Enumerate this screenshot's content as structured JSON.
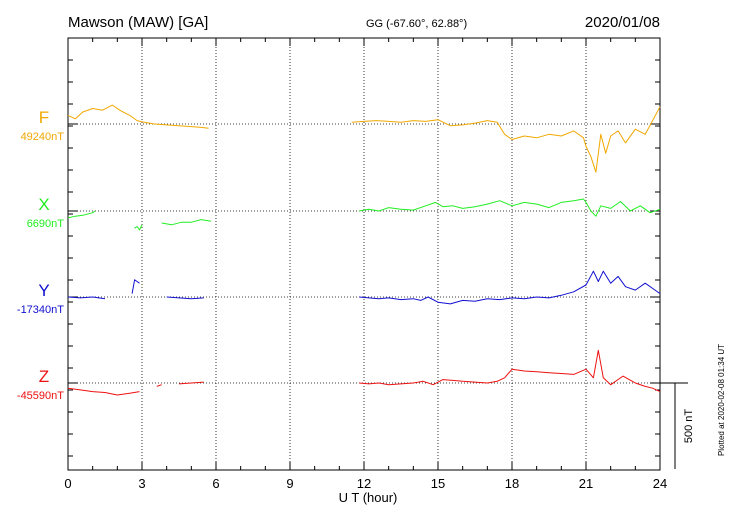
{
  "header": {
    "station": "Mawson (MAW)  [GA]",
    "coords": "GG (-67.60°,  62.88°)",
    "date": "2020/01/08"
  },
  "footer": {
    "plotted": "Plotted at 2020-02-08 01:34 UT"
  },
  "chart_data": {
    "type": "line",
    "xlabel": "U T (hour)",
    "xlim": [
      0,
      24
    ],
    "xticks": [
      "0",
      "3",
      "6",
      "9",
      "12",
      "15",
      "18",
      "21",
      "24"
    ],
    "scale_bar": {
      "label": "500 nT",
      "value_nT": 500
    },
    "series": [
      {
        "name": "F",
        "baseline_label": "49240nT",
        "baseline": 49240,
        "color": "#f0a800",
        "segments": [
          [
            [
              0.0,
              49290
            ],
            [
              0.3,
              49270
            ],
            [
              0.6,
              49310
            ],
            [
              1.0,
              49330
            ],
            [
              1.4,
              49320
            ],
            [
              1.8,
              49350
            ],
            [
              2.1,
              49320
            ],
            [
              2.5,
              49290
            ],
            [
              2.8,
              49260
            ],
            [
              3.1,
              49250
            ],
            [
              3.5,
              49240
            ],
            [
              4.0,
              49235
            ],
            [
              4.5,
              49230
            ],
            [
              5.0,
              49225
            ],
            [
              5.4,
              49220
            ],
            [
              5.7,
              49215
            ]
          ],
          [
            [
              11.5,
              49250
            ],
            [
              12.0,
              49255
            ],
            [
              12.5,
              49260
            ],
            [
              13.0,
              49255
            ],
            [
              13.5,
              49250
            ],
            [
              14.0,
              49260
            ],
            [
              14.5,
              49255
            ],
            [
              15.0,
              49265
            ],
            [
              15.5,
              49230
            ],
            [
              16.0,
              49235
            ],
            [
              16.5,
              49245
            ],
            [
              17.0,
              49260
            ],
            [
              17.4,
              49250
            ],
            [
              17.7,
              49180
            ],
            [
              18.0,
              49150
            ],
            [
              18.5,
              49170
            ],
            [
              19.0,
              49160
            ],
            [
              19.5,
              49180
            ],
            [
              20.0,
              49170
            ],
            [
              20.5,
              49200
            ],
            [
              20.9,
              49160
            ],
            [
              21.0,
              49110
            ],
            [
              21.2,
              49050
            ],
            [
              21.4,
              48960
            ],
            [
              21.6,
              49180
            ],
            [
              21.8,
              49070
            ],
            [
              22.0,
              49170
            ],
            [
              22.3,
              49200
            ],
            [
              22.6,
              49130
            ],
            [
              23.0,
              49210
            ],
            [
              23.4,
              49180
            ],
            [
              23.7,
              49260
            ],
            [
              24.0,
              49340
            ]
          ]
        ]
      },
      {
        "name": "X",
        "baseline_label": "6690nT",
        "baseline": 6690,
        "color": "#22ee22",
        "segments": [
          [
            [
              0.0,
              6650
            ],
            [
              0.3,
              6660
            ],
            [
              0.6,
              6665
            ],
            [
              1.0,
              6680
            ],
            [
              1.1,
              6690
            ]
          ],
          [
            [
              2.7,
              6590
            ],
            [
              2.8,
              6600
            ],
            [
              2.9,
              6580
            ],
            [
              3.0,
              6610
            ]
          ],
          [
            [
              3.8,
              6620
            ],
            [
              4.2,
              6610
            ],
            [
              4.6,
              6625
            ],
            [
              5.0,
              6625
            ],
            [
              5.4,
              6640
            ],
            [
              5.8,
              6630
            ]
          ],
          [
            [
              11.8,
              6690
            ],
            [
              12.2,
              6700
            ],
            [
              12.6,
              6690
            ],
            [
              13.0,
              6710
            ],
            [
              13.5,
              6700
            ],
            [
              14.0,
              6695
            ],
            [
              14.5,
              6720
            ],
            [
              14.9,
              6740
            ],
            [
              15.2,
              6715
            ],
            [
              15.6,
              6720
            ],
            [
              16.0,
              6705
            ],
            [
              16.5,
              6715
            ],
            [
              17.0,
              6730
            ],
            [
              17.5,
              6750
            ],
            [
              18.0,
              6720
            ],
            [
              18.5,
              6740
            ],
            [
              19.0,
              6730
            ],
            [
              19.5,
              6710
            ],
            [
              20.0,
              6740
            ],
            [
              20.5,
              6750
            ],
            [
              20.9,
              6760
            ],
            [
              21.0,
              6740
            ],
            [
              21.2,
              6690
            ],
            [
              21.4,
              6660
            ],
            [
              21.6,
              6720
            ],
            [
              22.0,
              6705
            ],
            [
              22.4,
              6745
            ],
            [
              22.8,
              6690
            ],
            [
              23.2,
              6720
            ],
            [
              23.6,
              6680
            ],
            [
              24.0,
              6700
            ]
          ]
        ]
      },
      {
        "name": "Y",
        "baseline_label": "-17340nT",
        "baseline": -17340,
        "color": "#1010d0",
        "segments": [
          [
            [
              0.0,
              -17340
            ],
            [
              0.5,
              -17345
            ],
            [
              1.0,
              -17340
            ],
            [
              1.5,
              -17350
            ]
          ],
          [
            [
              2.6,
              -17320
            ],
            [
              2.7,
              -17240
            ],
            [
              2.8,
              -17250
            ],
            [
              2.9,
              -17260
            ]
          ],
          [
            [
              4.0,
              -17340
            ],
            [
              4.5,
              -17345
            ],
            [
              5.0,
              -17350
            ],
            [
              5.5,
              -17345
            ]
          ],
          [
            [
              11.8,
              -17340
            ],
            [
              12.2,
              -17345
            ],
            [
              12.6,
              -17350
            ],
            [
              13.0,
              -17345
            ],
            [
              13.5,
              -17355
            ],
            [
              14.0,
              -17350
            ],
            [
              14.3,
              -17360
            ],
            [
              14.6,
              -17340
            ],
            [
              15.0,
              -17370
            ],
            [
              15.5,
              -17380
            ],
            [
              16.0,
              -17360
            ],
            [
              16.5,
              -17365
            ],
            [
              17.0,
              -17350
            ],
            [
              17.5,
              -17355
            ],
            [
              18.0,
              -17345
            ],
            [
              18.5,
              -17350
            ],
            [
              19.0,
              -17340
            ],
            [
              19.5,
              -17345
            ],
            [
              20.0,
              -17330
            ],
            [
              20.5,
              -17310
            ],
            [
              21.0,
              -17270
            ],
            [
              21.3,
              -17190
            ],
            [
              21.5,
              -17250
            ],
            [
              21.7,
              -17190
            ],
            [
              22.0,
              -17260
            ],
            [
              22.3,
              -17220
            ],
            [
              22.6,
              -17280
            ],
            [
              23.0,
              -17300
            ],
            [
              23.4,
              -17260
            ],
            [
              23.8,
              -17300
            ],
            [
              24.0,
              -17320
            ]
          ]
        ]
      },
      {
        "name": "Z",
        "baseline_label": "-45590nT",
        "baseline": -45590,
        "color": "#ee1010",
        "segments": [
          [
            [
              0.0,
              -45620
            ],
            [
              0.5,
              -45630
            ],
            [
              1.0,
              -45640
            ],
            [
              1.5,
              -45645
            ],
            [
              2.0,
              -45660
            ],
            [
              2.5,
              -45650
            ],
            [
              2.9,
              -45640
            ]
          ],
          [
            [
              3.6,
              -45610
            ],
            [
              3.8,
              -45600
            ]
          ],
          [
            [
              4.5,
              -45595
            ],
            [
              5.0,
              -45590
            ],
            [
              5.5,
              -45585
            ]
          ],
          [
            [
              11.8,
              -45590
            ],
            [
              12.2,
              -45595
            ],
            [
              12.6,
              -45590
            ],
            [
              13.0,
              -45600
            ],
            [
              13.5,
              -45595
            ],
            [
              14.0,
              -45590
            ],
            [
              14.4,
              -45580
            ],
            [
              14.8,
              -45600
            ],
            [
              15.2,
              -45570
            ],
            [
              15.6,
              -45575
            ],
            [
              16.0,
              -45580
            ],
            [
              16.5,
              -45585
            ],
            [
              17.0,
              -45590
            ],
            [
              17.4,
              -45580
            ],
            [
              17.7,
              -45560
            ],
            [
              18.0,
              -45510
            ],
            [
              18.5,
              -45520
            ],
            [
              19.0,
              -45525
            ],
            [
              19.5,
              -45530
            ],
            [
              20.0,
              -45535
            ],
            [
              20.5,
              -45540
            ],
            [
              21.0,
              -45510
            ],
            [
              21.3,
              -45560
            ],
            [
              21.5,
              -45400
            ],
            [
              21.7,
              -45560
            ],
            [
              22.0,
              -45600
            ],
            [
              22.5,
              -45550
            ],
            [
              23.0,
              -45590
            ],
            [
              23.4,
              -45610
            ],
            [
              23.7,
              -45620
            ],
            [
              24.0,
              -45640
            ]
          ]
        ]
      }
    ]
  }
}
